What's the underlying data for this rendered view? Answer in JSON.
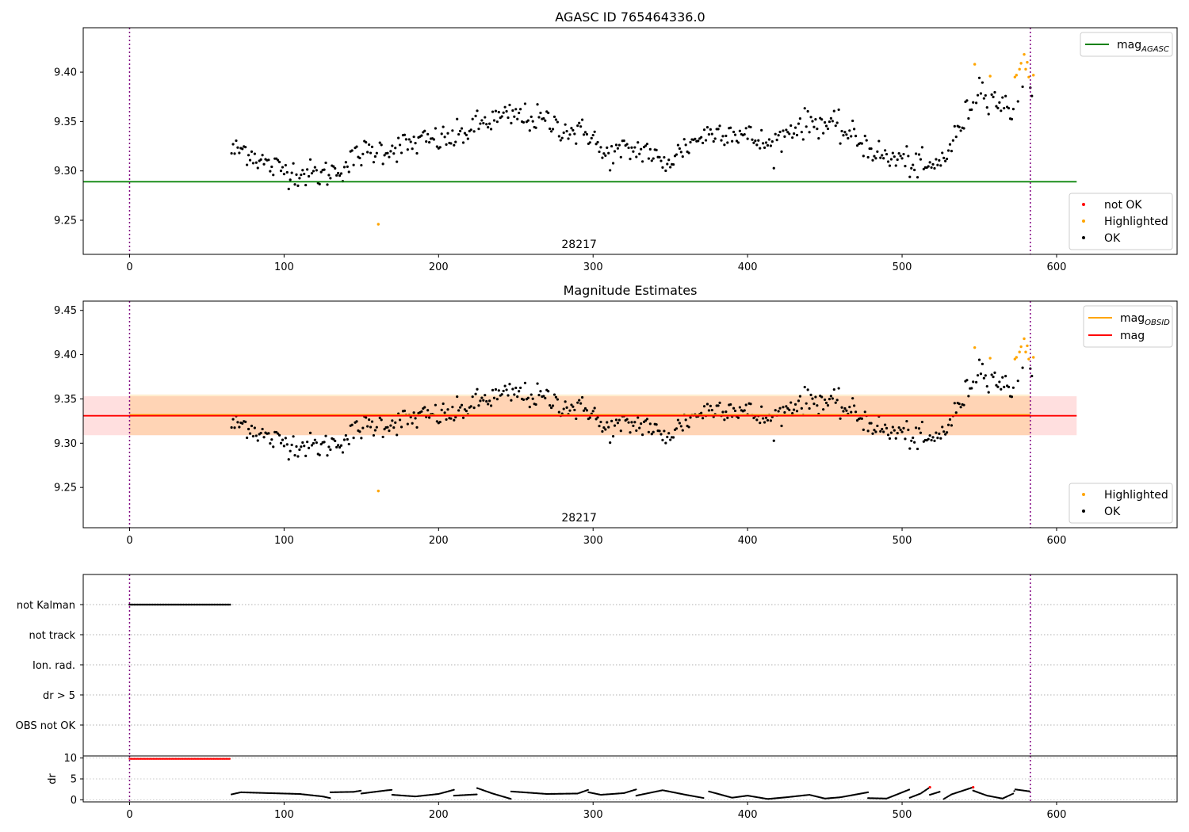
{
  "chart_data": [
    {
      "type": "scatter",
      "title": "AGASC ID 765464336.0",
      "xlim": [
        -30,
        678
      ],
      "ylim": [
        9.2155,
        9.445
      ],
      "xticks": [
        0,
        100,
        200,
        300,
        400,
        500,
        600
      ],
      "yticks": [
        9.25,
        9.3,
        9.35,
        9.4
      ],
      "ytick_labels": [
        "9.25",
        "9.30",
        "9.35",
        "9.40"
      ],
      "annotation": "28217",
      "vlines": [
        0,
        583
      ],
      "line_series": [
        {
          "name": "mag_AGASC",
          "color": "#008000",
          "y": 9.289,
          "x_range": [
            -30,
            613
          ]
        }
      ],
      "legend_lines": [
        {
          "label": "mag",
          "sub": "AGASC",
          "color": "#008000"
        }
      ],
      "legend_points": [
        {
          "label": "not OK",
          "color": "#ff0000"
        },
        {
          "label": "Highlighted",
          "color": "#ffa500"
        },
        {
          "label": "OK",
          "color": "#000000"
        }
      ],
      "highlighted_points": [
        [
          161,
          9.246
        ],
        [
          547,
          9.408
        ],
        [
          557,
          9.396
        ],
        [
          573,
          9.395
        ],
        [
          574,
          9.397
        ],
        [
          576,
          9.403
        ],
        [
          577,
          9.409
        ],
        [
          579,
          9.418
        ],
        [
          580,
          9.403
        ],
        [
          581,
          9.41
        ],
        [
          582,
          9.395
        ],
        [
          585,
          9.397
        ]
      ],
      "ok_segments": [
        [
          66,
          9.32
        ],
        [
          75,
          9.322
        ],
        [
          90,
          9.305
        ],
        [
          110,
          9.298
        ],
        [
          125,
          9.296
        ],
        [
          140,
          9.305
        ],
        [
          150,
          9.318
        ],
        [
          170,
          9.323
        ],
        [
          190,
          9.33
        ],
        [
          210,
          9.333
        ],
        [
          230,
          9.35
        ],
        [
          250,
          9.356
        ],
        [
          270,
          9.35
        ],
        [
          290,
          9.338
        ],
        [
          300,
          9.339
        ],
        [
          305,
          9.315
        ],
        [
          320,
          9.32
        ],
        [
          335,
          9.322
        ],
        [
          345,
          9.305
        ],
        [
          360,
          9.325
        ],
        [
          370,
          9.335
        ],
        [
          385,
          9.342
        ],
        [
          400,
          9.335
        ],
        [
          415,
          9.325
        ],
        [
          430,
          9.345
        ],
        [
          445,
          9.35
        ],
        [
          460,
          9.342
        ],
        [
          475,
          9.328
        ],
        [
          490,
          9.312
        ],
        [
          500,
          9.312
        ],
        [
          510,
          9.305
        ],
        [
          520,
          9.302
        ],
        [
          530,
          9.32
        ],
        [
          540,
          9.352
        ],
        [
          550,
          9.386
        ],
        [
          560,
          9.373
        ],
        [
          570,
          9.36
        ],
        [
          580,
          9.39
        ],
        [
          585,
          9.385
        ]
      ],
      "ok_scatter": 0.013
    },
    {
      "type": "scatter",
      "title": "Magnitude Estimates",
      "xlim": [
        -30,
        678
      ],
      "ylim": [
        9.2045,
        9.4605
      ],
      "xticks": [
        0,
        100,
        200,
        300,
        400,
        500,
        600
      ],
      "yticks": [
        9.25,
        9.3,
        9.35,
        9.4,
        9.45
      ],
      "ytick_labels": [
        "9.25",
        "9.30",
        "9.35",
        "9.40",
        "9.45"
      ],
      "annotation": "28217",
      "vlines": [
        0,
        583
      ],
      "bands": [
        {
          "x_range": [
            -30,
            613
          ],
          "y_range": [
            9.309,
            9.353
          ],
          "color": "#ff000020"
        },
        {
          "x_range": [
            0,
            583
          ],
          "y_range": [
            9.309,
            9.355
          ],
          "color": "#ffa50030"
        }
      ],
      "line_series": [
        {
          "name": "mag_OBSID",
          "color": "#ffa500",
          "y": 9.332,
          "x_range": [
            0,
            583
          ]
        },
        {
          "name": "mag",
          "color": "#ff0000",
          "y": 9.331,
          "x_range": [
            -30,
            613
          ]
        }
      ],
      "legend_lines": [
        {
          "label": "mag",
          "sub": "OBSID",
          "color": "#ffa500"
        },
        {
          "label": "mag",
          "sub": "",
          "color": "#ff0000"
        }
      ],
      "legend_points": [
        {
          "label": "Highlighted",
          "color": "#ffa500"
        },
        {
          "label": "OK",
          "color": "#000000"
        }
      ],
      "highlighted_points": [
        [
          161,
          9.246
        ],
        [
          547,
          9.408
        ],
        [
          557,
          9.396
        ],
        [
          573,
          9.395
        ],
        [
          574,
          9.397
        ],
        [
          576,
          9.403
        ],
        [
          577,
          9.409
        ],
        [
          579,
          9.418
        ],
        [
          580,
          9.403
        ],
        [
          581,
          9.41
        ],
        [
          582,
          9.395
        ],
        [
          585,
          9.397
        ]
      ],
      "ok_segments": [
        [
          66,
          9.32
        ],
        [
          75,
          9.322
        ],
        [
          90,
          9.305
        ],
        [
          110,
          9.298
        ],
        [
          125,
          9.296
        ],
        [
          140,
          9.305
        ],
        [
          150,
          9.318
        ],
        [
          170,
          9.323
        ],
        [
          190,
          9.33
        ],
        [
          210,
          9.333
        ],
        [
          230,
          9.35
        ],
        [
          250,
          9.356
        ],
        [
          270,
          9.35
        ],
        [
          290,
          9.338
        ],
        [
          300,
          9.339
        ],
        [
          305,
          9.315
        ],
        [
          320,
          9.32
        ],
        [
          335,
          9.322
        ],
        [
          345,
          9.305
        ],
        [
          360,
          9.325
        ],
        [
          370,
          9.335
        ],
        [
          385,
          9.342
        ],
        [
          400,
          9.335
        ],
        [
          415,
          9.325
        ],
        [
          430,
          9.345
        ],
        [
          445,
          9.35
        ],
        [
          460,
          9.342
        ],
        [
          475,
          9.328
        ],
        [
          490,
          9.312
        ],
        [
          500,
          9.312
        ],
        [
          510,
          9.305
        ],
        [
          520,
          9.302
        ],
        [
          530,
          9.32
        ],
        [
          540,
          9.352
        ],
        [
          550,
          9.386
        ],
        [
          560,
          9.373
        ],
        [
          570,
          9.36
        ],
        [
          580,
          9.39
        ],
        [
          585,
          9.385
        ]
      ],
      "ok_scatter": 0.013
    },
    {
      "type": "scatter",
      "title": "",
      "xlim": [
        -30,
        678
      ],
      "categories": [
        "not Kalman",
        "not track",
        "Ion. rad.",
        "dr > 5",
        "OBS not OK"
      ],
      "vlines": [
        0,
        583
      ],
      "flags": [
        {
          "category": "not Kalman",
          "x_range": [
            0,
            65
          ],
          "color": "#000000"
        }
      ]
    },
    {
      "type": "line",
      "title": "",
      "ylabel": "dr",
      "xlim": [
        -30,
        678
      ],
      "ylim": [
        -0.5,
        10.5
      ],
      "xticks": [
        0,
        100,
        200,
        300,
        400,
        500,
        600
      ],
      "yticks": [
        0,
        5,
        10
      ],
      "ytick_labels": [
        "0",
        "5",
        "10"
      ],
      "vlines": [
        0,
        583
      ],
      "red_segment": {
        "x_range": [
          0,
          65
        ],
        "y": 9.8
      },
      "dr_segments": [
        [
          [
            66,
            1.3
          ],
          [
            72,
            1.8
          ],
          [
            90,
            1.6
          ],
          [
            110,
            1.4
          ],
          [
            125,
            0.8
          ],
          [
            130,
            0.4
          ]
        ],
        [
          [
            130,
            1.8
          ],
          [
            145,
            1.9
          ],
          [
            150,
            2.2
          ]
        ],
        [
          [
            150,
            1.5
          ],
          [
            165,
            2.2
          ],
          [
            170,
            2.4
          ]
        ],
        [
          [
            170,
            1.2
          ],
          [
            185,
            0.8
          ],
          [
            200,
            1.4
          ],
          [
            210,
            2.4
          ]
        ],
        [
          [
            210,
            1.0
          ],
          [
            225,
            1.3
          ]
        ],
        [
          [
            225,
            2.8
          ],
          [
            235,
            1.5
          ],
          [
            247,
            0.2
          ]
        ],
        [
          [
            247,
            2.0
          ],
          [
            270,
            1.4
          ],
          [
            290,
            1.5
          ],
          [
            297,
            2.4
          ]
        ],
        [
          [
            297,
            1.8
          ],
          [
            305,
            1.2
          ],
          [
            320,
            1.6
          ],
          [
            328,
            2.5
          ]
        ],
        [
          [
            328,
            1.0
          ],
          [
            345,
            2.3
          ],
          [
            360,
            1.2
          ],
          [
            372,
            0.4
          ]
        ],
        [
          [
            375,
            2.0
          ],
          [
            390,
            0.5
          ],
          [
            400,
            1.0
          ],
          [
            413,
            0.2
          ],
          [
            425,
            0.6
          ],
          [
            440,
            1.2
          ],
          [
            450,
            0.3
          ],
          [
            460,
            0.6
          ],
          [
            478,
            1.8
          ]
        ],
        [
          [
            478,
            0.4
          ],
          [
            490,
            0.3
          ],
          [
            505,
            2.5
          ]
        ],
        [
          [
            505,
            0.5
          ],
          [
            512,
            1.5
          ],
          [
            518,
            3.0
          ]
        ],
        [
          [
            518,
            1.2
          ],
          [
            525,
            2.0
          ]
        ],
        [
          [
            527,
            0.2
          ],
          [
            532,
            1.3
          ],
          [
            546,
            3.0
          ]
        ],
        [
          [
            546,
            2.2
          ],
          [
            555,
            1.0
          ],
          [
            565,
            0.3
          ],
          [
            572,
            1.5
          ],
          [
            573,
            2.5
          ],
          [
            583,
            2.0
          ]
        ]
      ],
      "dr_red_points": [
        [
          518,
          3.0
        ],
        [
          546,
          3.0
        ]
      ]
    }
  ]
}
